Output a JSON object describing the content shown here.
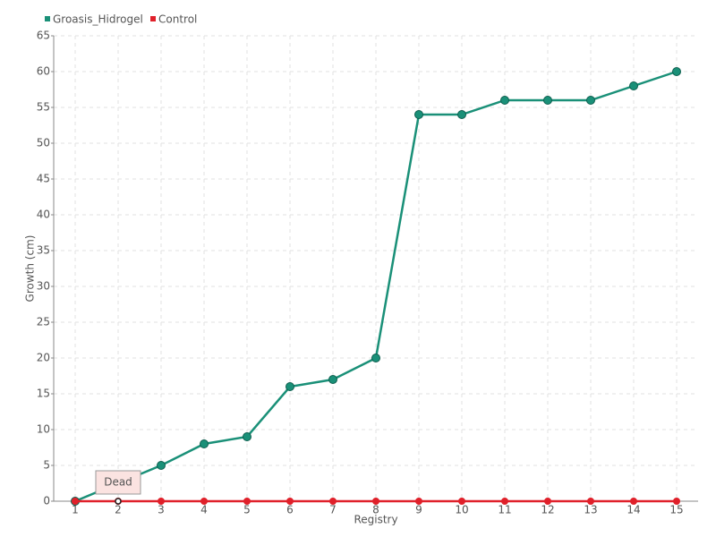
{
  "chart_data": {
    "type": "line",
    "x_label": "Registry",
    "y_label": "Growth (cm)",
    "categories": [
      "1",
      "2",
      "3",
      "4",
      "5",
      "6",
      "7",
      "8",
      "9",
      "10",
      "11",
      "12",
      "13",
      "14",
      "15"
    ],
    "series": [
      {
        "name": "Groasis_Hidrogel",
        "color": "#1a9078",
        "values": [
          0,
          2.5,
          5,
          8,
          9,
          16,
          17,
          20,
          54,
          54,
          56,
          56,
          56,
          58,
          60
        ]
      },
      {
        "name": "Control",
        "color": "#e0202a",
        "values": [
          0,
          0,
          0,
          0,
          0,
          0,
          0,
          0,
          0,
          0,
          0,
          0,
          0,
          0,
          0
        ]
      }
    ],
    "annotation": {
      "text": "Dead",
      "x": "2"
    },
    "ylim": [
      0,
      65
    ],
    "yticks": [
      0,
      5,
      10,
      15,
      20,
      25,
      30,
      35,
      40,
      45,
      50,
      55,
      60,
      65
    ],
    "grid": true,
    "legend": "top-left"
  }
}
